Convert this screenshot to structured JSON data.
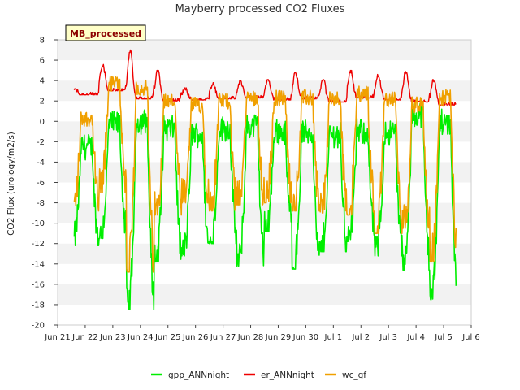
{
  "chart_data": {
    "type": "line",
    "title": "Mayberry processed CO2 Fluxes",
    "badge": "MB_processed",
    "xlabel": "",
    "ylabel": "CO2 Flux (urology/m2/s)",
    "ylim": [
      -20,
      8
    ],
    "yticks": [
      -20,
      -18,
      -16,
      -14,
      -12,
      -10,
      -8,
      -6,
      -4,
      -2,
      0,
      2,
      4,
      6,
      8
    ],
    "xlim": [
      0,
      15
    ],
    "xtick_labels": [
      "Jun 21",
      "Jun 22",
      "Jun 23",
      "Jun 24",
      "Jun 25",
      "Jun 26",
      "Jun 27",
      "Jun 28",
      "Jun 29",
      "Jun 30",
      "Jul 1",
      "Jul 2",
      "Jul 3",
      "Jul 4",
      "Jul 5",
      "Jul 6"
    ],
    "day_start": 0.6,
    "day_end": 14.45,
    "colors": {
      "gpp_ANNnight": "#00ee00",
      "er_ANNnight": "#ee0000",
      "wc_gf": "#f0a000"
    },
    "series": [
      {
        "name": "gpp_ANNnight",
        "day_minimums": [
          -12.2,
          -11.5,
          -18.5,
          -13.8,
          -13.2,
          -12.0,
          -14.2,
          -10.8,
          -14.5,
          -12.8,
          -11.8,
          -13.2,
          -14.6,
          -17.5,
          -11.2
        ],
        "day_maximums": [
          -1.0,
          1.2,
          1.5,
          0.8,
          0.2,
          0.8,
          1.0,
          0.5,
          0.4,
          0.2,
          0.5,
          0.4,
          2.2,
          1.4,
          1.0
        ]
      },
      {
        "name": "er_ANNnight",
        "day_minimums": [
          2.6,
          3.0,
          2.2,
          2.0,
          2.1,
          2.2,
          2.3,
          2.1,
          2.2,
          1.9,
          2.3,
          2.1,
          1.9,
          1.6,
          1.9
        ],
        "day_maximums": [
          3.2,
          5.6,
          7.0,
          5.0,
          3.3,
          3.8,
          4.0,
          4.1,
          4.8,
          4.1,
          5.0,
          4.6,
          5.0,
          4.1,
          4.0
        ]
      },
      {
        "name": "wc_gf",
        "day_minimums": [
          -8.8,
          -7.0,
          -14.8,
          -9.2,
          -8.0,
          -8.8,
          -8.2,
          -8.0,
          -8.8,
          -9.0,
          -9.2,
          -11.0,
          -10.5,
          -13.8,
          -8.0
        ],
        "day_maximums": [
          1.8,
          5.2,
          4.8,
          3.5,
          3.1,
          3.5,
          3.8,
          3.8,
          3.8,
          3.6,
          4.2,
          3.7,
          3.1,
          3.8,
          4.2
        ]
      }
    ],
    "legend": {
      "position": "bottom",
      "entries": [
        "gpp_ANNnight",
        "er_ANNnight",
        "wc_gf"
      ]
    }
  }
}
